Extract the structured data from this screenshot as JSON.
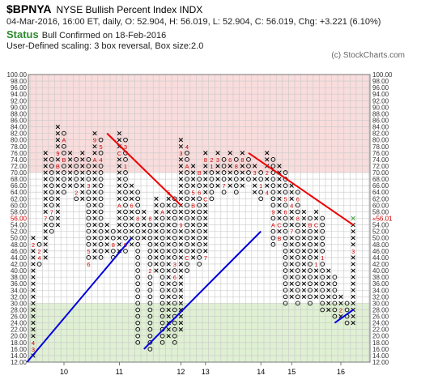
{
  "header": {
    "symbol": "$BPNYA",
    "description": "NYSE Bullish Percent Index  INDX",
    "ohlc_line": "04-Mar-2016, 16:00 ET, daily, O: 52.904, H: 56.019, L: 52.904, C: 56.019, Chg: +3.221 (6.10%)",
    "status_label": "Status",
    "status_value": "Bull Confirmed on 18-Feb-2016",
    "scaling": "User-Defined scaling: 3 box reversal, Box size:2.0",
    "copyright": "(c) StockCharts.com"
  },
  "colors": {
    "overbought_zone": "#f9dcdc",
    "neutral_zone": "#ffffff",
    "oversold_zone": "#dff0d3",
    "x_mark": "#000000",
    "o_mark": "#000000",
    "month_mark": "#cc0000",
    "last_x": "#2e9b2e",
    "trend_support": "#0000dd",
    "trend_resistance": "#ee0000",
    "current_price_label": "#cc0000",
    "grid": "#c9c9c9"
  },
  "chart_data": {
    "type": "point-and-figure",
    "box_size": 2.0,
    "reversal": 3,
    "ylim": [
      12,
      100
    ],
    "y_ticks": [
      12,
      14,
      16,
      18,
      20,
      22,
      24,
      26,
      28,
      30,
      32,
      34,
      36,
      38,
      40,
      42,
      44,
      46,
      48,
      50,
      52,
      54,
      56,
      58,
      60,
      62,
      64,
      66,
      68,
      70,
      72,
      74,
      76,
      78,
      80,
      82,
      84,
      86,
      88,
      90,
      92,
      94,
      96,
      98,
      100
    ],
    "y_tick_labels": [
      "12.00",
      "14.00",
      "16.00",
      "18.00",
      "20.00",
      "22.00",
      "24.00",
      "26.00",
      "28.00",
      "30.00",
      "32.00",
      "34.00",
      "36.00",
      "38.00",
      "40.00",
      "42.00",
      "44.00",
      "46.00",
      "48.00",
      "50.00",
      "52.00",
      "54.00",
      "56.00",
      "58.00",
      "60.00",
      "62.00",
      "64.00",
      "66.00",
      "68.00",
      "70.00",
      "72.00",
      "74.00",
      "76.00",
      "78.00",
      "80.00",
      "82.00",
      "84.00",
      "86.00",
      "88.00",
      "90.00",
      "92.00",
      "94.00",
      "96.00",
      "98.00",
      "100.00"
    ],
    "zones": {
      "overbought_from": 70,
      "oversold_to": 30
    },
    "year_labels": [
      {
        "label": "10",
        "column": 5
      },
      {
        "label": "11",
        "column": 14
      },
      {
        "label": "12",
        "column": 24
      },
      {
        "label": "13",
        "column": 28
      },
      {
        "label": "14",
        "column": 37
      },
      {
        "label": "15",
        "column": 42
      },
      {
        "label": "16",
        "column": 50
      }
    ],
    "current_value": 56.01,
    "current_value_label": "56.00",
    "current_value_right_label": "56.01",
    "columns": [
      {
        "type": "X",
        "low": 14,
        "high": 50,
        "marks": {
          "16": "3",
          "18": "4",
          "48": "2"
        }
      },
      {
        "type": "O",
        "low": 42,
        "high": 48,
        "marks": {
          "46": "2",
          "44": "4"
        }
      },
      {
        "type": "X",
        "low": 44,
        "high": 76,
        "marks": {
          "56": "7"
        }
      },
      {
        "type": "O",
        "low": 52,
        "high": 74,
        "marks": {
          "58": "7"
        }
      },
      {
        "type": "X",
        "low": 54,
        "high": 84,
        "marks": {
          "76": "9",
          "72": "B"
        }
      },
      {
        "type": "O",
        "low": 64,
        "high": 82,
        "marks": {
          "80": "A",
          "74": "B"
        }
      },
      {
        "type": "X",
        "low": 66,
        "high": 76,
        "marks": {}
      },
      {
        "type": "O",
        "low": 62,
        "high": 74,
        "marks": {
          "64": "2"
        }
      },
      {
        "type": "X",
        "low": 62,
        "high": 76,
        "marks": {}
      },
      {
        "type": "O",
        "low": 42,
        "high": 74,
        "marks": {
          "66": "3",
          "46": "5",
          "42": "6"
        }
      },
      {
        "type": "X",
        "low": 44,
        "high": 82,
        "marks": {
          "80": "9",
          "74": "A"
        }
      },
      {
        "type": "O",
        "low": 44,
        "high": 80,
        "marks": {
          "78": "5",
          "74": "4"
        }
      },
      {
        "type": "X",
        "low": 46,
        "high": 54,
        "marks": {
          "44": "7"
        }
      },
      {
        "type": "O",
        "low": 44,
        "high": 52,
        "marks": {
          "48": "8"
        }
      },
      {
        "type": "X",
        "low": 46,
        "high": 82,
        "marks": {
          "60": "A",
          "76": "C"
        }
      },
      {
        "type": "O",
        "low": 46,
        "high": 80,
        "marks": {
          "48": "9",
          "78": "3",
          "72": "1"
        }
      },
      {
        "type": "X",
        "low": 48,
        "high": 66,
        "marks": {
          "60": "6"
        }
      },
      {
        "type": "O",
        "low": 18,
        "high": 64,
        "marks": {
          "56": "8"
        }
      },
      {
        "type": "X",
        "low": 50,
        "high": 58,
        "marks": {}
      },
      {
        "type": "O",
        "low": 16,
        "high": 56,
        "marks": {
          "56": "8",
          "40": "2"
        }
      },
      {
        "type": "X",
        "low": 40,
        "high": 62,
        "marks": {}
      },
      {
        "type": "O",
        "low": 18,
        "high": 60,
        "marks": {
          "58": "A"
        }
      },
      {
        "type": "X",
        "low": 20,
        "high": 64,
        "marks": {
          "64": "5"
        }
      },
      {
        "type": "O",
        "low": 18,
        "high": 62,
        "marks": {
          "42": "3",
          "38": "6"
        }
      },
      {
        "type": "X",
        "low": 22,
        "high": 80,
        "marks": {
          "76": "3",
          "54": "9"
        }
      },
      {
        "type": "O",
        "low": 40,
        "high": 78,
        "marks": {
          "78": "4",
          "72": "A",
          "44": "C"
        }
      },
      {
        "type": "X",
        "low": 44,
        "high": 72,
        "marks": {
          "64": "5",
          "60": "B"
        }
      },
      {
        "type": "O",
        "low": 42,
        "high": 70,
        "marks": {
          "70": "B",
          "64": "6"
        }
      },
      {
        "type": "X",
        "low": 44,
        "high": 76,
        "marks": {
          "74": "8",
          "62": "C",
          "44": "7"
        }
      },
      {
        "type": "O",
        "low": 62,
        "high": 74,
        "marks": {
          "74": "2",
          "72": "1"
        }
      },
      {
        "type": "X",
        "low": 66,
        "high": 76,
        "marks": {
          "74": "3"
        }
      },
      {
        "type": "O",
        "low": 64,
        "high": 74,
        "marks": {
          "66": "7"
        }
      },
      {
        "type": "X",
        "low": 66,
        "high": 76,
        "marks": {
          "74": "6"
        }
      },
      {
        "type": "O",
        "low": 64,
        "high": 74,
        "marks": {
          "72": "8"
        }
      },
      {
        "type": "X",
        "low": 66,
        "high": 76,
        "marks": {
          "74": "8"
        }
      },
      {
        "type": "O",
        "low": 68,
        "high": 74,
        "marks": {}
      },
      {
        "type": "X",
        "low": 64,
        "high": 72,
        "marks": {
          "70": "3"
        }
      },
      {
        "type": "O",
        "low": 62,
        "high": 70,
        "marks": {
          "66": "1"
        }
      },
      {
        "type": "X",
        "low": 64,
        "high": 76,
        "marks": {
          "70": "2",
          "64": "4"
        }
      },
      {
        "type": "O",
        "low": 48,
        "high": 74,
        "marks": {
          "58": "9",
          "54": "A"
        }
      },
      {
        "type": "X",
        "low": 50,
        "high": 72,
        "marks": {
          "54": "C",
          "50": "B"
        }
      },
      {
        "type": "O",
        "low": 30,
        "high": 70,
        "marks": {
          "62": "5",
          "58": "6"
        }
      },
      {
        "type": "X",
        "low": 32,
        "high": 66,
        "marks": {
          "60": "4",
          "52": "7"
        }
      },
      {
        "type": "O",
        "low": 30,
        "high": 64,
        "marks": {
          "62": "6",
          "56": "8"
        }
      },
      {
        "type": "X",
        "low": 32,
        "high": 58,
        "marks": {}
      },
      {
        "type": "O",
        "low": 30,
        "high": 56,
        "marks": {
          "54": "B"
        }
      },
      {
        "type": "X",
        "low": 32,
        "high": 58,
        "marks": {
          "54": "C",
          "42": "1"
        }
      },
      {
        "type": "O",
        "low": 28,
        "high": 56,
        "marks": {
          "44": "1"
        }
      },
      {
        "type": "X",
        "low": 28,
        "high": 40,
        "marks": {}
      },
      {
        "type": "O",
        "low": 26,
        "high": 38,
        "marks": {}
      },
      {
        "type": "X",
        "low": 26,
        "high": 32,
        "marks": {
          "28": "2"
        }
      },
      {
        "type": "O",
        "low": 24,
        "high": 30,
        "marks": {}
      },
      {
        "type": "X",
        "low": 24,
        "high": 56,
        "marks": {
          "46": "3"
        }
      }
    ],
    "trend_lines": [
      {
        "kind": "support",
        "from": {
          "column": -1,
          "value": 12
        },
        "to": {
          "column": 16,
          "value": 50
        }
      },
      {
        "kind": "support",
        "from": {
          "column": 18,
          "value": 16
        },
        "to": {
          "column": 37,
          "value": 52
        }
      },
      {
        "kind": "support",
        "from": {
          "column": 49,
          "value": 24
        },
        "to": {
          "column": 52,
          "value": 28
        }
      },
      {
        "kind": "resistance",
        "from": {
          "column": 12,
          "value": 82
        },
        "to": {
          "column": 24,
          "value": 60
        }
      },
      {
        "kind": "resistance",
        "from": {
          "column": 35,
          "value": 76
        },
        "to": {
          "column": 52,
          "value": 54
        }
      }
    ]
  }
}
